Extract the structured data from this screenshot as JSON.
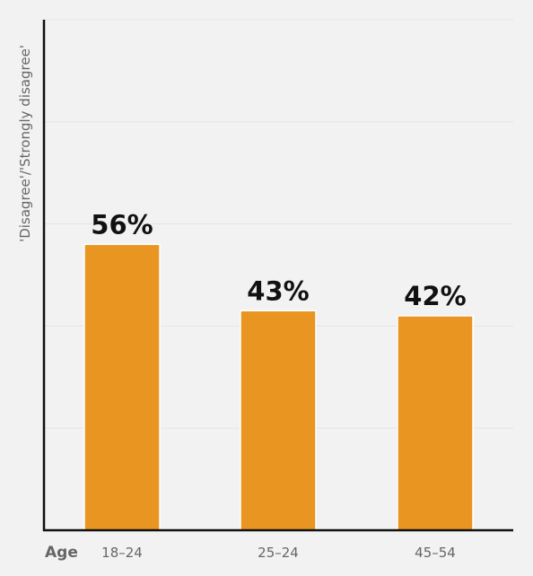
{
  "chart_data": {
    "type": "bar",
    "title": "",
    "xlabel": "Age",
    "ylabel": "'Disagree'/'Strongly disagree'",
    "categories": [
      "18–24",
      "25–24",
      "45–54"
    ],
    "values": [
      56,
      43,
      42
    ],
    "data_labels": [
      "56%",
      "43%",
      "42%"
    ],
    "ylim": [
      0,
      100
    ],
    "grid": true,
    "legend": "none"
  },
  "colors": {
    "background": "#f2f2f2",
    "bar": "#e89521",
    "axis": "#111111",
    "grid": "#e4e4e4",
    "tick_text": "#666666",
    "value_label": "#111111"
  }
}
